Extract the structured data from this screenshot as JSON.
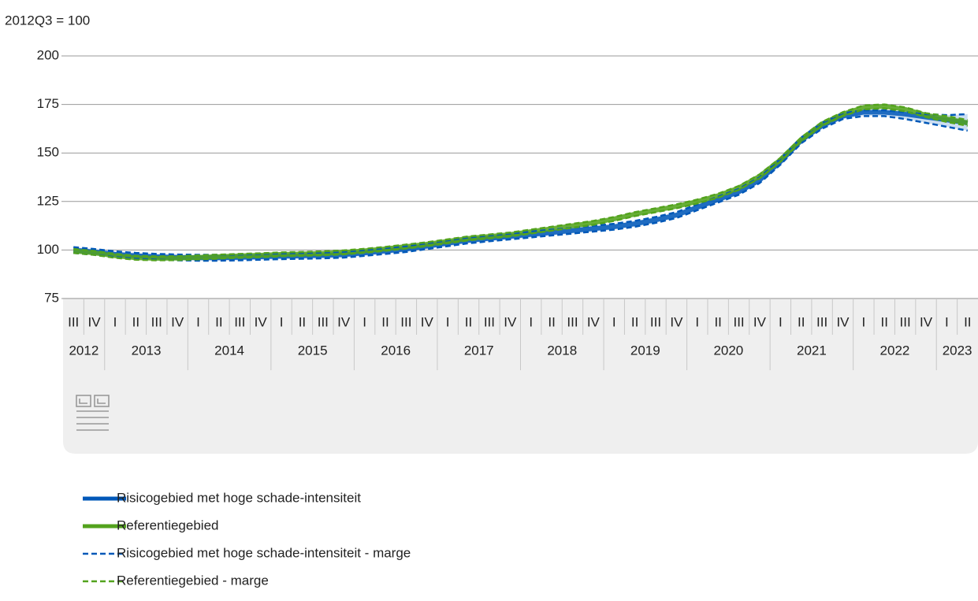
{
  "chart_data": {
    "type": "line",
    "y_label": "2012Q3 = 100",
    "categories": [
      "III",
      "IV",
      "I",
      "II",
      "III",
      "IV",
      "I",
      "II",
      "III",
      "IV",
      "I",
      "II",
      "III",
      "IV",
      "I",
      "II",
      "III",
      "IV",
      "I",
      "II",
      "III",
      "IV",
      "I",
      "II",
      "III",
      "IV",
      "I",
      "II",
      "III",
      "IV",
      "I",
      "II",
      "III",
      "IV",
      "I",
      "II",
      "III",
      "IV",
      "I",
      "II",
      "III",
      "IV",
      "I",
      "II"
    ],
    "years": [
      "2012",
      "2013",
      "2014",
      "2015",
      "2016",
      "2017",
      "2018",
      "2019",
      "2020",
      "2021",
      "2022",
      "2023"
    ],
    "ylim": [
      75,
      200
    ],
    "yticks": [
      75,
      100,
      125,
      150,
      175,
      200
    ],
    "grid": true,
    "legend": "bottom",
    "series": [
      {
        "name": "Risicogebied met hoge schade-intensiteit",
        "color": "#0058b8",
        "values": [
          100,
          99,
          97.8,
          97,
          96.5,
          96.2,
          96,
          96,
          96.2,
          96.5,
          96.8,
          97,
          97.2,
          97.6,
          98.5,
          99.5,
          100.5,
          102,
          103.5,
          105,
          106,
          107,
          108,
          109,
          110,
          111,
          112,
          113.5,
          115.5,
          118,
          122,
          126,
          130,
          136,
          145.5,
          156.5,
          164,
          169,
          171,
          171,
          170,
          168.5,
          167,
          165.5
        ]
      },
      {
        "name": "Referentiegebied",
        "color": "#53a31d",
        "values": [
          99.5,
          98.5,
          97,
          96,
          95.7,
          95.8,
          96.2,
          96.6,
          97,
          97.3,
          97.8,
          98,
          98.3,
          98.8,
          99.6,
          100.6,
          101.8,
          103,
          104.5,
          106,
          107,
          108,
          109.5,
          111,
          112.5,
          114,
          116,
          118.5,
          120.5,
          122.5,
          125,
          128,
          132,
          138,
          146.5,
          157,
          165,
          170,
          173.5,
          174,
          172.5,
          169.5,
          167.5,
          165.5
        ]
      },
      {
        "name": "Risicogebied met hoge schade-intensiteit - marge",
        "color": "#0058b8",
        "dashed": true,
        "lower": [
          98.5,
          97.5,
          96.3,
          95.5,
          95,
          94.7,
          94.5,
          94.5,
          94.7,
          95,
          95.3,
          95.5,
          95.7,
          96.1,
          97,
          98,
          99,
          100.5,
          102,
          103.5,
          104.5,
          105.5,
          106.5,
          107.5,
          108.5,
          109.5,
          110.5,
          112,
          114,
          116.5,
          120.5,
          124.5,
          128.5,
          134.5,
          144,
          155,
          162.5,
          167.5,
          169,
          169,
          167.5,
          165.5,
          163.5,
          161.5
        ],
        "upper": [
          101.5,
          100.5,
          99.3,
          98.5,
          98,
          97.7,
          97.5,
          97.5,
          97.7,
          98,
          98.3,
          98.5,
          98.7,
          99.1,
          100,
          101,
          102,
          103.5,
          105,
          106.5,
          107.5,
          108.5,
          109.5,
          110.5,
          111.5,
          112.5,
          113.5,
          115,
          117,
          119.5,
          123.5,
          127.5,
          131.5,
          137.5,
          147,
          158,
          165.5,
          170.5,
          172,
          172,
          171,
          170,
          169.5,
          170
        ]
      },
      {
        "name": "Referentiegebied - marge",
        "color": "#53a31d",
        "dashed": true,
        "lower": [
          98.5,
          97.5,
          96,
          95,
          94.7,
          94.8,
          95.2,
          95.6,
          96,
          96.3,
          96.8,
          97,
          97.3,
          97.8,
          98.6,
          99.6,
          100.8,
          102,
          103.5,
          105,
          106,
          107,
          108.5,
          110,
          111.5,
          113,
          115,
          117.5,
          119.5,
          121.5,
          124,
          127,
          131,
          137,
          145.5,
          156,
          164,
          169,
          172.5,
          173,
          171.5,
          168.5,
          166,
          164
        ],
        "upper": [
          100.5,
          99.5,
          98,
          97,
          96.7,
          96.8,
          97.2,
          97.6,
          98,
          98.3,
          98.8,
          99,
          99.3,
          99.8,
          100.6,
          101.6,
          102.8,
          104,
          105.5,
          107,
          108,
          109,
          110.5,
          112,
          113.5,
          115,
          117,
          119.5,
          121.5,
          123.5,
          126,
          129,
          133,
          139,
          147.5,
          158,
          166,
          171,
          174.5,
          175,
          173.5,
          170.5,
          169,
          167
        ]
      }
    ]
  }
}
